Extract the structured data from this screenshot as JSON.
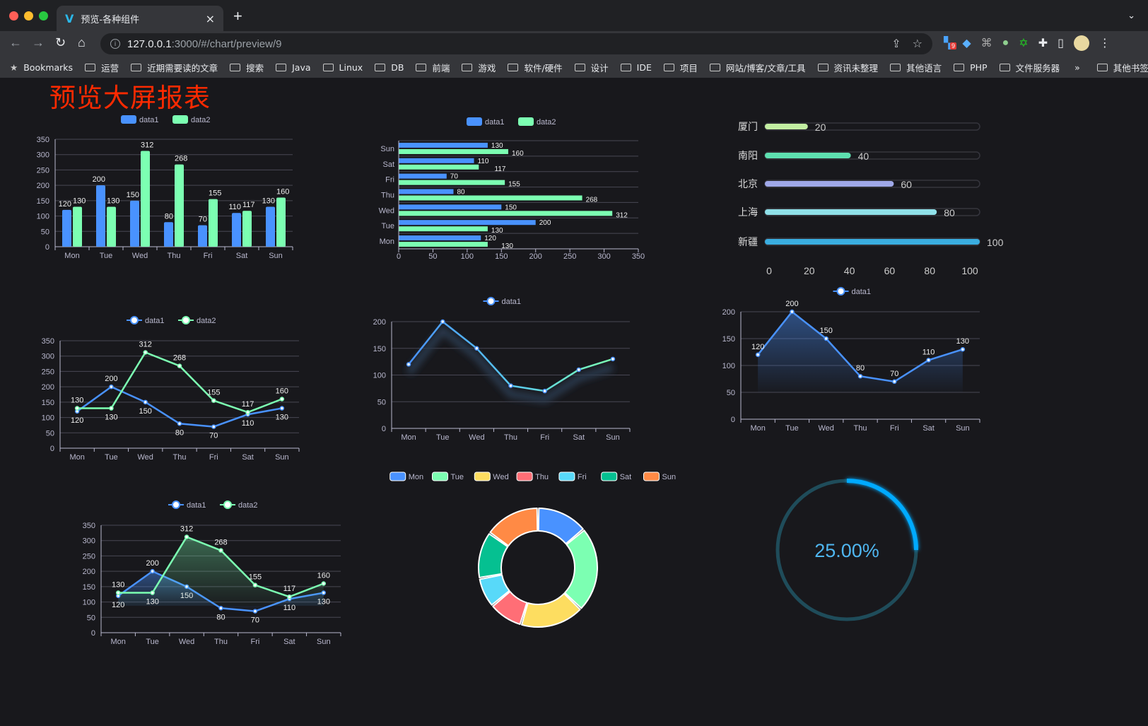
{
  "browser": {
    "tab_title": "预览-各种组件",
    "tab_close": "×",
    "new_tab": "+",
    "url_host": "127.0.0.1",
    "url_path": ":3000/#/chart/preview/9",
    "extension_badge": "9",
    "bookmarks_label": "Bookmarks",
    "bookmarks": [
      "运营",
      "近期需要读的文章",
      "搜索",
      "Java",
      "Linux",
      "DB",
      "前端",
      "游戏",
      "软件/硬件",
      "设计",
      "IDE",
      "项目",
      "网站/博客/文章/工具",
      "资讯未整理",
      "其他语言",
      "PHP",
      "文件服务器"
    ],
    "more": "»",
    "other_bookmarks": "其他书签"
  },
  "page": {
    "title": "预览大屏报表"
  },
  "colors": {
    "data1": "#4992ff",
    "data2": "#7cffb2",
    "title": "#ff2a00",
    "gauge": "#00aaff",
    "gauge_track": "#1f4c5a"
  },
  "chart_data": [
    {
      "type": "bar",
      "categories": [
        "Mon",
        "Tue",
        "Wed",
        "Thu",
        "Fri",
        "Sat",
        "Sun"
      ],
      "yticks": [
        "0",
        "50",
        "100",
        "150",
        "200",
        "250",
        "300",
        "350"
      ],
      "ylim": [
        0,
        350
      ],
      "legend": "top",
      "series": [
        {
          "name": "data1",
          "values": [
            120,
            200,
            150,
            80,
            70,
            110,
            130
          ]
        },
        {
          "name": "data2",
          "values": [
            130,
            130,
            312,
            268,
            155,
            117,
            160
          ]
        }
      ]
    },
    {
      "type": "bar",
      "orientation": "horizontal",
      "categories": [
        "Mon",
        "Tue",
        "Wed",
        "Thu",
        "Fri",
        "Sat",
        "Sun"
      ],
      "xticks": [
        "0",
        "50",
        "100",
        "150",
        "200",
        "250",
        "300",
        "350"
      ],
      "xlim": [
        0,
        350
      ],
      "legend": "top",
      "series": [
        {
          "name": "data1",
          "values": [
            120,
            200,
            150,
            80,
            70,
            110,
            130
          ]
        },
        {
          "name": "data2",
          "values": [
            130,
            130,
            312,
            268,
            155,
            117,
            160
          ]
        }
      ]
    },
    {
      "type": "bar",
      "orientation": "horizontal",
      "categories": [
        "厦门",
        "南阳",
        "北京",
        "上海",
        "新疆"
      ],
      "values": [
        20,
        40,
        60,
        80,
        100
      ],
      "labels": [
        "20",
        "40",
        "60",
        "80",
        "100"
      ],
      "xticks": [
        "0",
        "20",
        "40",
        "60",
        "80",
        "100"
      ],
      "xlim": [
        0,
        100
      ],
      "colors": [
        "#c3eea2",
        "#5ee0b0",
        "#9fa8e8",
        "#8fe0e8",
        "#3aade0"
      ]
    },
    {
      "type": "line",
      "categories": [
        "Mon",
        "Tue",
        "Wed",
        "Thu",
        "Fri",
        "Sat",
        "Sun"
      ],
      "yticks": [
        "0",
        "50",
        "100",
        "150",
        "200",
        "250",
        "300",
        "350"
      ],
      "ylim": [
        0,
        350
      ],
      "legend": "top",
      "series": [
        {
          "name": "data1",
          "values": [
            120,
            200,
            150,
            80,
            70,
            110,
            130
          ]
        },
        {
          "name": "data2",
          "values": [
            130,
            130,
            312,
            268,
            155,
            117,
            160
          ]
        }
      ]
    },
    {
      "type": "line",
      "categories": [
        "Mon",
        "Tue",
        "Wed",
        "Thu",
        "Fri",
        "Sat",
        "Sun"
      ],
      "yticks": [
        "0",
        "50",
        "100",
        "150",
        "200"
      ],
      "ylim": [
        0,
        200
      ],
      "legend": "top",
      "series": [
        {
          "name": "data1",
          "values": [
            120,
            200,
            150,
            80,
            70,
            110,
            130
          ]
        }
      ]
    },
    {
      "type": "area",
      "categories": [
        "Mon",
        "Tue",
        "Wed",
        "Thu",
        "Fri",
        "Sat",
        "Sun"
      ],
      "yticks": [
        "0",
        "50",
        "100",
        "150",
        "200"
      ],
      "ylim": [
        0,
        200
      ],
      "legend": "top",
      "series": [
        {
          "name": "data1",
          "values": [
            120,
            200,
            150,
            80,
            70,
            110,
            130
          ]
        }
      ]
    },
    {
      "type": "area",
      "categories": [
        "Mon",
        "Tue",
        "Wed",
        "Thu",
        "Fri",
        "Sat",
        "Sun"
      ],
      "yticks": [
        "0",
        "50",
        "100",
        "150",
        "200",
        "250",
        "300",
        "350"
      ],
      "ylim": [
        0,
        350
      ],
      "legend": "top",
      "series": [
        {
          "name": "data1",
          "values": [
            120,
            200,
            150,
            80,
            70,
            110,
            130
          ]
        },
        {
          "name": "data2",
          "values": [
            130,
            130,
            312,
            268,
            155,
            117,
            160
          ]
        }
      ]
    },
    {
      "type": "pie",
      "variant": "donut",
      "categories": [
        "Mon",
        "Tue",
        "Wed",
        "Thu",
        "Fri",
        "Sat",
        "Sun"
      ],
      "values": [
        120,
        200,
        150,
        80,
        70,
        110,
        130
      ],
      "legend": "top",
      "colors": [
        "#4992ff",
        "#7cffb2",
        "#fddd60",
        "#ff6e76",
        "#58d9f9",
        "#05c091",
        "#ff8a45"
      ]
    },
    {
      "type": "gauge",
      "value": 25,
      "label": "25.00%"
    }
  ]
}
